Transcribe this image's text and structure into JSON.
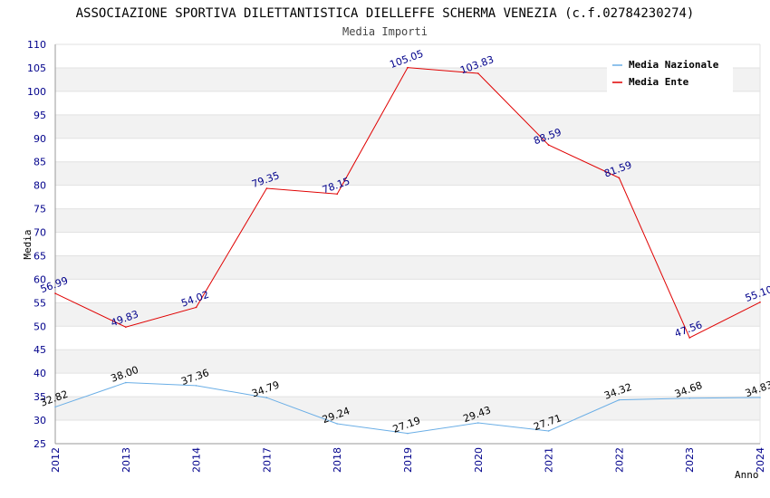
{
  "chart_data": {
    "type": "line",
    "title": "ASSOCIAZIONE SPORTIVA DILETTANTISTICA DIELLEFFE SCHERMA VENEZIA (c.f.02784230274)",
    "subtitle": "Media Importi",
    "xlabel": "Anno",
    "ylabel": "Media",
    "ylim": [
      25,
      110
    ],
    "ytick_step": 5,
    "grid": "horizontal bands",
    "legend_position": "top-right",
    "categories": [
      "2012",
      "2013",
      "2014",
      "2017",
      "2018",
      "2019",
      "2020",
      "2021",
      "2022",
      "2023",
      "2024"
    ],
    "series": [
      {
        "name": "Media Nazionale",
        "color": "#6aaee6",
        "label_color": "#000000",
        "values": [
          32.82,
          38.0,
          37.36,
          34.79,
          29.24,
          27.19,
          29.43,
          27.71,
          34.32,
          34.68,
          34.83
        ],
        "labels": [
          "32.82",
          "38.00",
          "37.36",
          "34.79",
          "29.24",
          "27.19",
          "29.43",
          "27.71",
          "34.32",
          "34.68",
          "34.83"
        ]
      },
      {
        "name": "Media Ente",
        "color": "#e00000",
        "label_color": "#00008b",
        "values": [
          56.99,
          49.83,
          54.02,
          79.35,
          78.15,
          105.05,
          103.83,
          88.59,
          81.59,
          47.56,
          55.1
        ],
        "labels": [
          "56.99",
          "49.83",
          "54.02",
          "79.35",
          "78.15",
          "105.05",
          "103.83",
          "88.59",
          "81.59",
          "47.56",
          "55.10"
        ]
      }
    ]
  }
}
